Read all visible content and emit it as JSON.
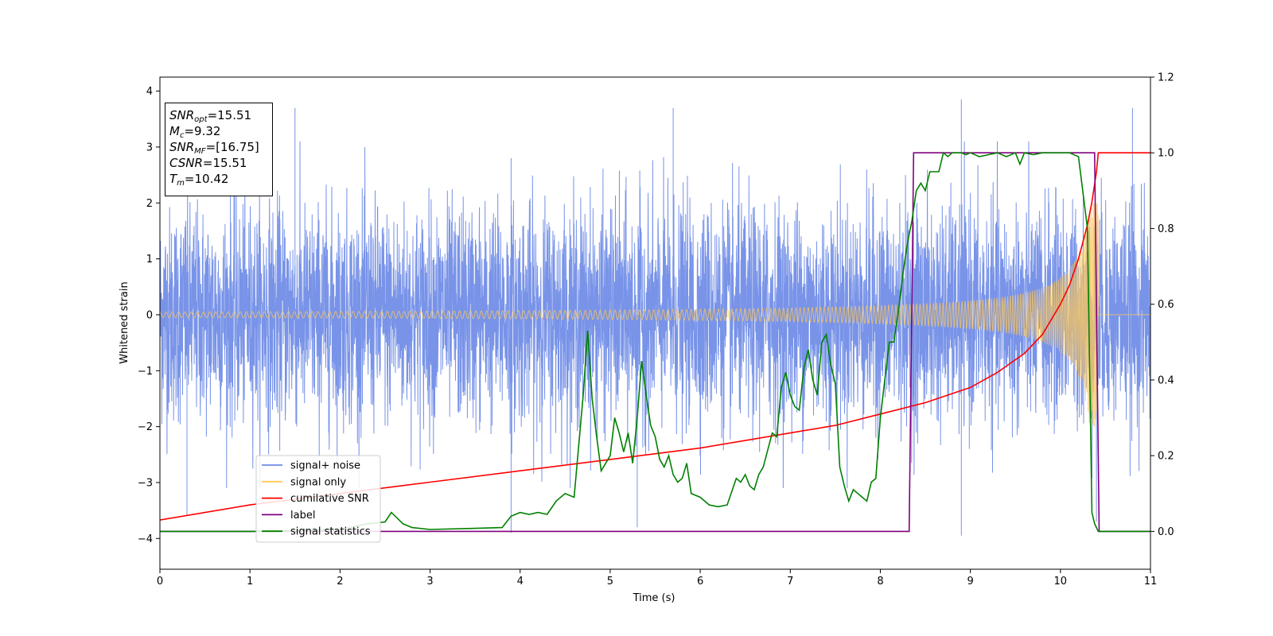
{
  "chart_data": {
    "type": "line",
    "title": "",
    "xlabel": "Time (s)",
    "ylabel": "Whitened strain",
    "y2label": "",
    "xlim": [
      0,
      11
    ],
    "ylim": [
      -4.55,
      4.25
    ],
    "y2lim": [
      -0.1,
      1.2
    ],
    "xticks": [
      "0",
      "1",
      "2",
      "3",
      "4",
      "5",
      "6",
      "7",
      "8",
      "9",
      "10",
      "11"
    ],
    "yticks": [
      "−4",
      "−3",
      "−2",
      "−1",
      "0",
      "1",
      "2",
      "3",
      "4"
    ],
    "y2ticks": [
      "0.0",
      "0.2",
      "0.4",
      "0.6",
      "0.8",
      "1.0",
      "1.2"
    ],
    "grid": false,
    "legend_position": "lower-left",
    "annotation": {
      "snr_opt": "15.51",
      "mc": "9.32",
      "snr_mf": "[16.75]",
      "csnr": "15.51",
      "tm": "10.42"
    },
    "series": [
      {
        "name": "signal+ noise",
        "axis": "left",
        "color": "#6d8ae6",
        "description_values": "noise band roughly between -2.5 and 2.6, occasional spikes to ~3.8 / -3.9",
        "envelope": {
          "typical_low": -2.3,
          "typical_high": 2.4,
          "spikes_high": [
            [
              1.5,
              3.7
            ],
            [
              3.9,
              2.8
            ],
            [
              5.7,
              3.7
            ],
            [
              8.9,
              3.85
            ],
            [
              10.8,
              3.7
            ]
          ],
          "spikes_low": [
            [
              0.3,
              -3.6
            ],
            [
              3.9,
              -3.9
            ],
            [
              5.3,
              -3.8
            ],
            [
              8.9,
              -3.95
            ],
            [
              10.4,
              -3.7
            ]
          ]
        }
      },
      {
        "name": "signal only",
        "axis": "left",
        "color": "#ffc859",
        "chirp": {
          "t_merger": 10.42,
          "amp_start": 0.05,
          "amp_peak": 2.0
        }
      },
      {
        "name": "cumilative SNR",
        "axis": "right",
        "color": "#ff0000",
        "x": [
          0,
          1,
          2,
          3,
          4,
          5,
          6,
          7,
          7.5,
          8,
          8.5,
          9,
          9.3,
          9.6,
          9.8,
          10.0,
          10.1,
          10.2,
          10.3,
          10.35,
          10.4,
          10.42,
          10.45,
          11
        ],
        "y": [
          0.03,
          0.07,
          0.1,
          0.13,
          0.16,
          0.19,
          0.22,
          0.26,
          0.28,
          0.31,
          0.34,
          0.38,
          0.42,
          0.47,
          0.52,
          0.6,
          0.65,
          0.72,
          0.81,
          0.87,
          0.95,
          1.0,
          1.0,
          1.0
        ]
      },
      {
        "name": "label",
        "axis": "right",
        "color": "#800080",
        "x": [
          0,
          8.32,
          8.37,
          10.38,
          10.43,
          11
        ],
        "y": [
          0.0,
          0.0,
          1.0,
          1.0,
          0.0,
          0.0
        ]
      },
      {
        "name": "signal statistics",
        "axis": "right",
        "color": "#008000",
        "x": [
          0,
          1,
          2,
          2.3,
          2.5,
          2.57,
          2.7,
          2.8,
          3.0,
          3.5,
          3.8,
          3.9,
          4.0,
          4.1,
          4.2,
          4.3,
          4.4,
          4.5,
          4.6,
          4.7,
          4.75,
          4.8,
          4.85,
          4.9,
          4.95,
          5.0,
          5.05,
          5.1,
          5.15,
          5.2,
          5.25,
          5.3,
          5.35,
          5.4,
          5.45,
          5.5,
          5.55,
          5.6,
          5.65,
          5.7,
          5.75,
          5.8,
          5.85,
          5.9,
          6.0,
          6.1,
          6.2,
          6.3,
          6.4,
          6.45,
          6.5,
          6.55,
          6.6,
          6.65,
          6.7,
          6.8,
          6.85,
          6.9,
          6.95,
          7.0,
          7.05,
          7.1,
          7.15,
          7.2,
          7.25,
          7.3,
          7.35,
          7.4,
          7.45,
          7.5,
          7.55,
          7.6,
          7.65,
          7.7,
          7.75,
          7.8,
          7.85,
          7.9,
          7.95,
          8.0,
          8.05,
          8.1,
          8.15,
          8.2,
          8.25,
          8.3,
          8.35,
          8.4,
          8.45,
          8.5,
          8.55,
          8.6,
          8.65,
          8.7,
          8.75,
          8.8,
          8.85,
          8.9,
          8.95,
          9.0,
          9.1,
          9.2,
          9.3,
          9.4,
          9.5,
          9.55,
          9.6,
          9.7,
          9.8,
          9.9,
          10.0,
          10.1,
          10.2,
          10.3,
          10.35,
          10.38,
          10.42,
          10.45,
          10.5,
          11
        ],
        "y": [
          0.0,
          0.0,
          0.005,
          0.02,
          0.025,
          0.05,
          0.02,
          0.01,
          0.005,
          0.008,
          0.01,
          0.04,
          0.05,
          0.045,
          0.05,
          0.045,
          0.08,
          0.1,
          0.09,
          0.36,
          0.53,
          0.35,
          0.25,
          0.16,
          0.18,
          0.2,
          0.3,
          0.26,
          0.21,
          0.26,
          0.18,
          0.3,
          0.45,
          0.36,
          0.28,
          0.25,
          0.19,
          0.17,
          0.2,
          0.15,
          0.13,
          0.14,
          0.18,
          0.1,
          0.09,
          0.07,
          0.065,
          0.07,
          0.14,
          0.13,
          0.15,
          0.12,
          0.11,
          0.15,
          0.17,
          0.26,
          0.25,
          0.38,
          0.42,
          0.36,
          0.33,
          0.32,
          0.43,
          0.48,
          0.4,
          0.36,
          0.5,
          0.52,
          0.44,
          0.39,
          0.17,
          0.12,
          0.08,
          0.11,
          0.1,
          0.09,
          0.08,
          0.13,
          0.14,
          0.3,
          0.4,
          0.5,
          0.5,
          0.58,
          0.68,
          0.76,
          0.82,
          0.9,
          0.92,
          0.9,
          0.95,
          0.95,
          0.95,
          1.0,
          0.99,
          1.0,
          1.0,
          1.0,
          0.995,
          1.0,
          0.99,
          0.995,
          1.0,
          0.99,
          1.0,
          0.97,
          1.0,
          0.995,
          1.0,
          1.0,
          1.0,
          1.0,
          0.99,
          0.8,
          0.05,
          0.02,
          0.0,
          0.0,
          0.0,
          0.0
        ]
      }
    ]
  }
}
